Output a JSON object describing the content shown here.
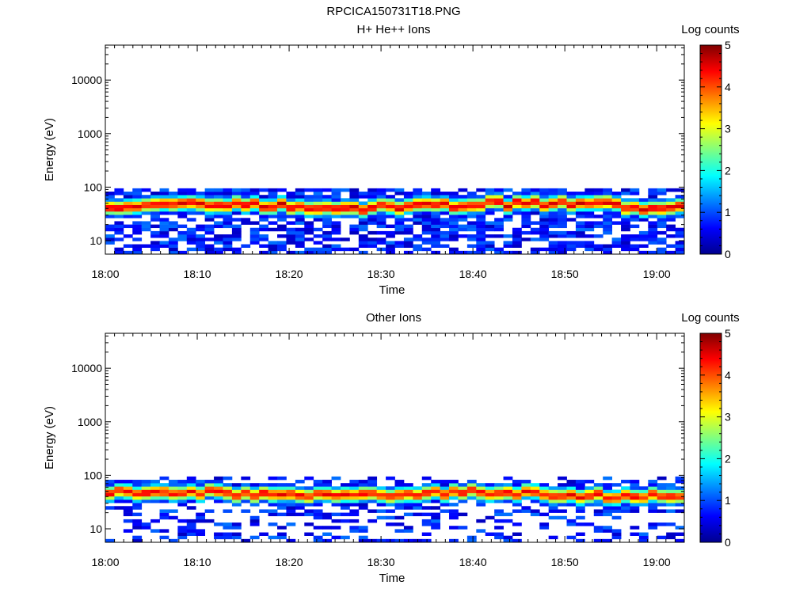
{
  "figure_title": "RPCICA150731T18.PNG",
  "chart_data": [
    {
      "type": "heatmap",
      "title": "H+ He++ Ions",
      "xlabel": "Time",
      "ylabel": "Energy (eV)",
      "x_range": [
        "18:00",
        "19:03"
      ],
      "y_scale": "log",
      "ylim": [
        5.6,
        45000
      ],
      "x_ticks": [
        "18:00",
        "18:10",
        "18:20",
        "18:30",
        "18:40",
        "18:50",
        "19:00"
      ],
      "y_ticks": [
        "10",
        "100",
        "1000",
        "10000"
      ],
      "colorbar": {
        "label": "Log counts",
        "min": 0,
        "max": 5,
        "ticks": [
          "0",
          "1",
          "2",
          "3",
          "4",
          "5"
        ]
      },
      "band": {
        "peak_energy_ev": 45,
        "peak_log_counts": 4.5,
        "max_energy_ev": 95,
        "min_energy_ev": 5.6
      },
      "grid": false
    },
    {
      "type": "heatmap",
      "title": "Other Ions",
      "xlabel": "Time",
      "ylabel": "Energy (eV)",
      "x_range": [
        "18:00",
        "19:03"
      ],
      "y_scale": "log",
      "ylim": [
        5.6,
        45000
      ],
      "x_ticks": [
        "18:00",
        "18:10",
        "18:20",
        "18:30",
        "18:40",
        "18:50",
        "19:00"
      ],
      "y_ticks": [
        "10",
        "100",
        "1000",
        "10000"
      ],
      "colorbar": {
        "label": "Log counts",
        "min": 0,
        "max": 5,
        "ticks": [
          "0",
          "1",
          "2",
          "3",
          "4",
          "5"
        ]
      },
      "band": {
        "peak_energy_ev": 45,
        "peak_log_counts": 4.3,
        "max_energy_ev": 95,
        "min_energy_ev": 5.6
      },
      "grid": false
    }
  ]
}
